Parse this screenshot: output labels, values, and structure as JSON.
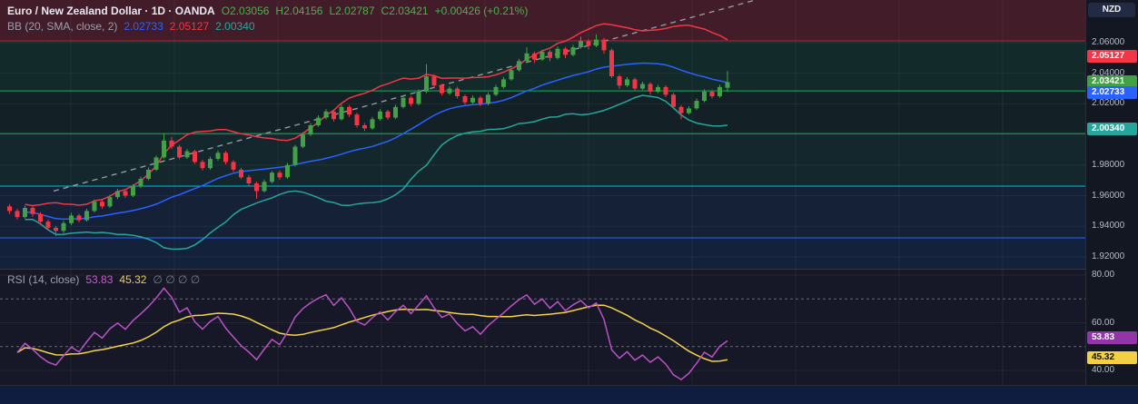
{
  "legend": {
    "symbol_title": "Euro / New Zealand Dollar · 1D · OANDA",
    "open": "O2.03056",
    "high": "H2.04156",
    "low": "L2.02787",
    "close": "C2.03421",
    "change": "+0.00426 (+0.21%)",
    "ohlc_color": "#4caf50"
  },
  "bb_legend": {
    "label": "BB (20, SMA, close, 2)",
    "basis": "2.02733",
    "upper": "2.05127",
    "lower": "2.00340",
    "basis_color": "#2962ff",
    "upper_color": "#f23645",
    "lower_color": "#26a69a"
  },
  "rsi_legend": {
    "label": "RSI (14, close)",
    "value": "53.83",
    "ma": "45.32",
    "empties": "∅ ∅ ∅ ∅",
    "value_color": "#c65ecf",
    "ma_color": "#f0cf4e",
    "empties_color": "#787b86"
  },
  "price_axis": {
    "currency": "NZD",
    "ticks": [
      {
        "label": "2.06000",
        "value": 2.06
      },
      {
        "label": "2.04000",
        "value": 2.04
      },
      {
        "label": "2.02000",
        "value": 2.02
      },
      {
        "label": "1.98000",
        "value": 1.98
      },
      {
        "label": "1.96000",
        "value": 1.96
      },
      {
        "label": "1.94000",
        "value": 1.94
      },
      {
        "label": "1.92000",
        "value": 1.92
      }
    ],
    "badges": [
      {
        "label": "2.05127",
        "value": 2.05127,
        "bg": "#f23645",
        "fg": "#ffffff"
      },
      {
        "label": "2.03421",
        "value": 2.03421,
        "bg": "#43a047",
        "fg": "#ffffff"
      },
      {
        "label": "2.02733",
        "value": 2.02733,
        "bg": "#2962ff",
        "fg": "#ffffff"
      },
      {
        "label": "2.00340",
        "value": 2.0034,
        "bg": "#26a69a",
        "fg": "#ffffff"
      }
    ]
  },
  "rsi_axis": {
    "ticks": [
      {
        "label": "80.00",
        "value": 80
      },
      {
        "label": "60.00",
        "value": 60
      },
      {
        "label": "40.00",
        "value": 40
      }
    ],
    "badges": [
      {
        "label": "53.83",
        "value": 53.83,
        "bg": "#9334a8",
        "fg": "#ffffff"
      },
      {
        "label": "45.32",
        "value": 45.32,
        "bg": "#f2cf43",
        "fg": "#111111"
      }
    ]
  },
  "chart_data": {
    "type": "candlestick",
    "title": "Euro / New Zealand Dollar, 1D, OANDA",
    "last_ohlc": {
      "open": 2.03056,
      "high": 2.04156,
      "low": 2.02787,
      "close": 2.03421,
      "change": 0.00426,
      "change_pct": 0.21
    },
    "up_color": "#43a047",
    "down_color": "#f23645",
    "price_gridlines": [
      2.06,
      2.04,
      2.02,
      2.0,
      1.98,
      1.96,
      1.94,
      1.92
    ],
    "candles": [
      [
        1.953,
        1.9545,
        1.948,
        1.95
      ],
      [
        1.95,
        1.9515,
        1.9445,
        1.946
      ],
      [
        1.946,
        1.9535,
        1.945,
        1.952
      ],
      [
        1.952,
        1.953,
        1.9462,
        1.948
      ],
      [
        1.948,
        1.9492,
        1.9415,
        1.943
      ],
      [
        1.943,
        1.9445,
        1.9372,
        1.939
      ],
      [
        1.939,
        1.9402,
        1.9335,
        1.937
      ],
      [
        1.937,
        1.9435,
        1.9355,
        1.942
      ],
      [
        1.942,
        1.9488,
        1.9408,
        1.947
      ],
      [
        1.947,
        1.9482,
        1.9425,
        1.944
      ],
      [
        1.944,
        1.9515,
        1.943,
        1.95
      ],
      [
        1.95,
        1.9575,
        1.949,
        1.956
      ],
      [
        1.956,
        1.9572,
        1.9515,
        1.953
      ],
      [
        1.953,
        1.9605,
        1.952,
        1.959
      ],
      [
        1.959,
        1.9645,
        1.9578,
        1.963
      ],
      [
        1.963,
        1.9642,
        1.9585,
        1.96
      ],
      [
        1.96,
        1.9675,
        1.959,
        1.966
      ],
      [
        1.966,
        1.9725,
        1.965,
        1.971
      ],
      [
        1.971,
        1.9785,
        1.97,
        1.977
      ],
      [
        1.977,
        1.9862,
        1.976,
        1.985
      ],
      [
        1.985,
        2.0005,
        1.984,
        1.996
      ],
      [
        1.996,
        1.9985,
        1.9905,
        1.992
      ],
      [
        1.992,
        1.9932,
        1.9838,
        1.985
      ],
      [
        1.985,
        1.9905,
        1.984,
        1.989
      ],
      [
        1.989,
        1.99,
        1.9808,
        1.982
      ],
      [
        1.982,
        1.9835,
        1.9765,
        1.978
      ],
      [
        1.978,
        1.9855,
        1.977,
        1.984
      ],
      [
        1.984,
        1.9895,
        1.9828,
        1.988
      ],
      [
        1.988,
        1.9892,
        1.9805,
        1.982
      ],
      [
        1.982,
        1.9832,
        1.9755,
        1.977
      ],
      [
        1.977,
        1.9782,
        1.9708,
        1.972
      ],
      [
        1.972,
        1.9735,
        1.9665,
        1.968
      ],
      [
        1.968,
        1.9692,
        1.958,
        1.963
      ],
      [
        1.963,
        1.9705,
        1.962,
        1.969
      ],
      [
        1.969,
        1.9762,
        1.968,
        1.975
      ],
      [
        1.975,
        1.9765,
        1.9705,
        1.972
      ],
      [
        1.972,
        1.9815,
        1.971,
        1.98
      ],
      [
        1.98,
        1.9932,
        1.979,
        1.992
      ],
      [
        1.992,
        2.0015,
        1.991,
        2.0
      ],
      [
        2.0,
        2.0075,
        1.999,
        2.006
      ],
      [
        2.006,
        2.0125,
        2.005,
        2.011
      ],
      [
        2.011,
        2.0165,
        2.0098,
        2.015
      ],
      [
        2.015,
        2.0162,
        2.0085,
        2.01
      ],
      [
        2.01,
        2.0195,
        2.009,
        2.018
      ],
      [
        2.018,
        2.0192,
        2.0115,
        2.013
      ],
      [
        2.013,
        2.0142,
        2.0045,
        2.006
      ],
      [
        2.006,
        2.0075,
        2.0022,
        2.004
      ],
      [
        2.004,
        2.0115,
        2.003,
        2.01
      ],
      [
        2.01,
        2.0165,
        2.009,
        2.015
      ],
      [
        2.015,
        2.0162,
        2.0095,
        2.011
      ],
      [
        2.011,
        2.0195,
        2.01,
        2.018
      ],
      [
        2.018,
        2.0255,
        2.017,
        2.024
      ],
      [
        2.024,
        2.0252,
        2.0185,
        2.02
      ],
      [
        2.02,
        2.0295,
        2.019,
        2.028
      ],
      [
        2.028,
        2.046,
        2.027,
        2.038
      ],
      [
        2.038,
        2.0392,
        2.0305,
        2.032
      ],
      [
        2.032,
        2.0332,
        2.0255,
        2.027
      ],
      [
        2.027,
        2.0315,
        2.0258,
        2.03
      ],
      [
        2.03,
        2.0312,
        2.0235,
        2.025
      ],
      [
        2.025,
        2.0262,
        2.0195,
        2.021
      ],
      [
        2.021,
        2.0255,
        2.02,
        2.024
      ],
      [
        2.024,
        2.0252,
        2.0185,
        2.02
      ],
      [
        2.02,
        2.0275,
        2.019,
        2.026
      ],
      [
        2.026,
        2.0325,
        2.025,
        2.031
      ],
      [
        2.031,
        2.0375,
        2.03,
        2.036
      ],
      [
        2.036,
        2.0435,
        2.035,
        2.042
      ],
      [
        2.042,
        2.0495,
        2.041,
        2.048
      ],
      [
        2.048,
        2.057,
        2.047,
        2.053
      ],
      [
        2.053,
        2.0542,
        2.0468,
        2.049
      ],
      [
        2.049,
        2.0555,
        2.048,
        2.054
      ],
      [
        2.054,
        2.0552,
        2.0478,
        2.05
      ],
      [
        2.05,
        2.0575,
        2.049,
        2.056
      ],
      [
        2.056,
        2.0572,
        2.0498,
        2.052
      ],
      [
        2.052,
        2.0585,
        2.051,
        2.057
      ],
      [
        2.057,
        2.064,
        2.056,
        2.061
      ],
      [
        2.061,
        2.0622,
        2.0558,
        2.058
      ],
      [
        2.058,
        2.0655,
        2.057,
        2.062
      ],
      [
        2.062,
        2.0632,
        2.0528,
        2.055
      ],
      [
        2.055,
        2.0562,
        2.037,
        2.038
      ],
      [
        2.038,
        2.0392,
        2.0298,
        2.032
      ],
      [
        2.032,
        2.0375,
        2.031,
        2.036
      ],
      [
        2.036,
        2.0372,
        2.0285,
        2.03
      ],
      [
        2.03,
        2.0345,
        2.029,
        2.033
      ],
      [
        2.033,
        2.0342,
        2.0262,
        2.028
      ],
      [
        2.028,
        2.0325,
        2.027,
        2.031
      ],
      [
        2.031,
        2.0322,
        2.0245,
        2.026
      ],
      [
        2.026,
        2.0272,
        2.0165,
        2.018
      ],
      [
        2.018,
        2.0192,
        2.01,
        2.014
      ],
      [
        2.014,
        2.0185,
        2.013,
        2.017
      ],
      [
        2.017,
        2.0235,
        2.016,
        2.022
      ],
      [
        2.022,
        2.0295,
        2.021,
        2.028
      ],
      [
        2.028,
        2.0292,
        2.0235,
        2.025
      ],
      [
        2.025,
        2.0325,
        2.024,
        2.031
      ],
      [
        2.03056,
        2.04156,
        2.02787,
        2.03421
      ]
    ],
    "bollinger": {
      "period": 20,
      "stdev_mult": 2,
      "basis_color": "#2962ff",
      "upper_color": "#f23645",
      "lower_color": "#26a69a",
      "last": {
        "basis": 2.02733,
        "upper": 2.05127,
        "lower": 2.0034
      }
    },
    "rsi": {
      "period": 14,
      "line_color": "#bb52c5",
      "ma_color": "#f5d34a",
      "last": 53.83,
      "ma_last": 45.32,
      "levels_dashed": [
        70,
        50
      ],
      "axis_ticks": [
        80,
        60,
        40
      ]
    },
    "zones": [
      {
        "from": 2.0612,
        "to": 2.088,
        "color": "rgba(190,45,60,0.28)"
      },
      {
        "from": 2.0285,
        "to": 2.0612,
        "color": "rgba(18,140,90,0.16)"
      },
      {
        "from": 2.0006,
        "to": 2.0285,
        "color": "rgba(18,140,90,0.09)"
      },
      {
        "from": 1.9662,
        "to": 2.0006,
        "color": "rgba(18,140,110,0.14)"
      },
      {
        "from": 1.9324,
        "to": 1.9662,
        "color": "rgba(30,90,170,0.16)"
      },
      {
        "from": 1.912,
        "to": 1.9324,
        "color": "rgba(20,55,120,0.30)"
      }
    ],
    "levels": [
      {
        "price": 2.0612,
        "color": "#b22838"
      },
      {
        "price": 2.0285,
        "color": "#1faa59"
      },
      {
        "price": 2.0006,
        "color": "#1faa59"
      },
      {
        "price": 1.9662,
        "color": "#00bcd4"
      },
      {
        "price": 1.9324,
        "color": "#2962ff"
      }
    ],
    "trendline": {
      "from_candle": 6,
      "from_price": 1.963,
      "to_candle": 97,
      "to_price": 2.088,
      "color": "#9598a1",
      "dash": "6,5"
    }
  }
}
